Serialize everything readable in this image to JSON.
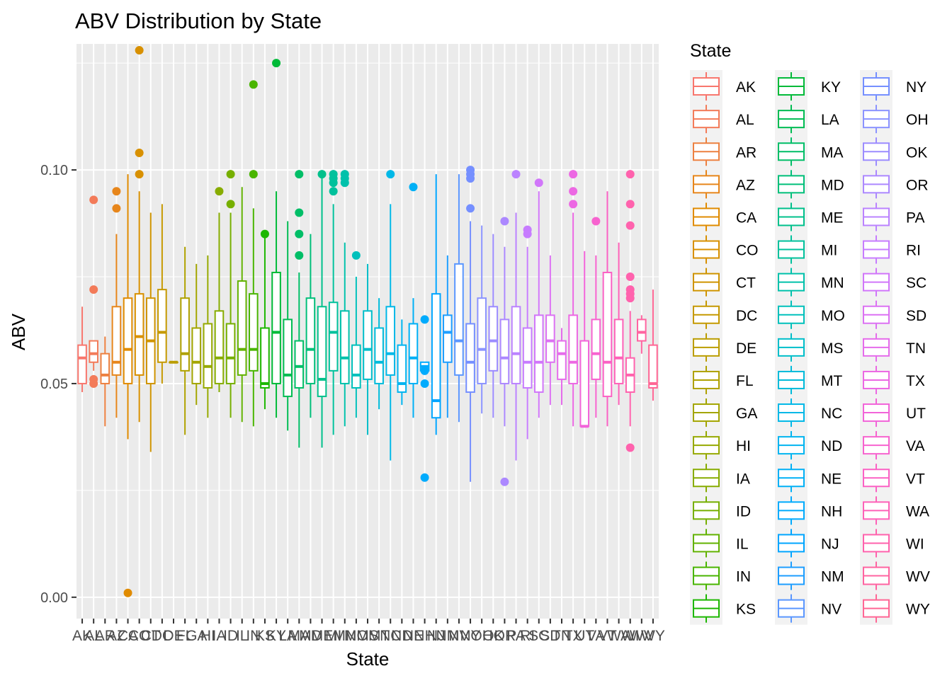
{
  "chart_data": {
    "type": "boxplot",
    "title": "ABV Distribution by State",
    "xlabel": "State",
    "ylabel": "ABV",
    "ylim": [
      -0.005,
      0.1295
    ],
    "yticks": [
      0.0,
      0.05,
      0.1
    ],
    "ytick_labels": [
      "0.00",
      "0.05",
      "0.10"
    ],
    "grid": true,
    "legend": {
      "title": "State",
      "position": "right",
      "columns": 3
    },
    "series": [
      {
        "name": "AK",
        "color": "#F8766D",
        "min": 0.048,
        "q1": 0.05,
        "median": 0.056,
        "q3": 0.059,
        "max": 0.068,
        "outliers": []
      },
      {
        "name": "AL",
        "color": "#F37B59",
        "min": 0.053,
        "q1": 0.055,
        "median": 0.057,
        "q3": 0.06,
        "max": 0.06,
        "outliers": [
          0.093,
          0.072,
          0.051,
          0.05
        ]
      },
      {
        "name": "AR",
        "color": "#ED8141",
        "min": 0.04,
        "q1": 0.05,
        "median": 0.052,
        "q3": 0.057,
        "max": 0.061,
        "outliers": []
      },
      {
        "name": "AZ",
        "color": "#E7861B",
        "min": 0.042,
        "q1": 0.052,
        "median": 0.055,
        "q3": 0.068,
        "max": 0.085,
        "outliers": [
          0.095,
          0.091
        ]
      },
      {
        "name": "CA",
        "color": "#E08B00",
        "min": 0.037,
        "q1": 0.05,
        "median": 0.058,
        "q3": 0.07,
        "max": 0.099,
        "outliers": [
          0.001
        ]
      },
      {
        "name": "CO",
        "color": "#D89000",
        "min": 0.041,
        "q1": 0.052,
        "median": 0.061,
        "q3": 0.071,
        "max": 0.095,
        "outliers": [
          0.128,
          0.104,
          0.099
        ]
      },
      {
        "name": "CT",
        "color": "#CF9400",
        "min": 0.034,
        "q1": 0.05,
        "median": 0.06,
        "q3": 0.07,
        "max": 0.09,
        "outliers": []
      },
      {
        "name": "DC",
        "color": "#C59900",
        "min": 0.05,
        "q1": 0.055,
        "median": 0.062,
        "q3": 0.072,
        "max": 0.092,
        "outliers": []
      },
      {
        "name": "DE",
        "color": "#BB9D00",
        "min": 0.055,
        "q1": 0.055,
        "median": 0.055,
        "q3": 0.055,
        "max": 0.055,
        "outliers": []
      },
      {
        "name": "FL",
        "color": "#AFA100",
        "min": 0.038,
        "q1": 0.053,
        "median": 0.057,
        "q3": 0.07,
        "max": 0.082,
        "outliers": []
      },
      {
        "name": "GA",
        "color": "#A3A500",
        "min": 0.045,
        "q1": 0.05,
        "median": 0.055,
        "q3": 0.063,
        "max": 0.078,
        "outliers": []
      },
      {
        "name": "HI",
        "color": "#96A900",
        "min": 0.042,
        "q1": 0.049,
        "median": 0.054,
        "q3": 0.064,
        "max": 0.08,
        "outliers": []
      },
      {
        "name": "IA",
        "color": "#87AC00",
        "min": 0.048,
        "q1": 0.05,
        "median": 0.056,
        "q3": 0.067,
        "max": 0.09,
        "outliers": [
          0.095
        ]
      },
      {
        "name": "ID",
        "color": "#76AF00",
        "min": 0.042,
        "q1": 0.05,
        "median": 0.056,
        "q3": 0.064,
        "max": 0.09,
        "outliers": [
          0.099,
          0.092
        ]
      },
      {
        "name": "IL",
        "color": "#62B200",
        "min": 0.041,
        "q1": 0.052,
        "median": 0.058,
        "q3": 0.074,
        "max": 0.096,
        "outliers": []
      },
      {
        "name": "IN",
        "color": "#49B500",
        "min": 0.04,
        "q1": 0.053,
        "median": 0.058,
        "q3": 0.071,
        "max": 0.091,
        "outliers": [
          0.12,
          0.099
        ]
      },
      {
        "name": "KS",
        "color": "#1DB700",
        "min": 0.044,
        "q1": 0.049,
        "median": 0.05,
        "q3": 0.063,
        "max": 0.085,
        "outliers": [
          0.085
        ]
      },
      {
        "name": "KY",
        "color": "#00BA38",
        "min": 0.042,
        "q1": 0.05,
        "median": 0.062,
        "q3": 0.076,
        "max": 0.095,
        "outliers": [
          0.125
        ]
      },
      {
        "name": "LA",
        "color": "#00BC52",
        "min": 0.039,
        "q1": 0.047,
        "median": 0.052,
        "q3": 0.065,
        "max": 0.088,
        "outliers": []
      },
      {
        "name": "MA",
        "color": "#00BE67",
        "min": 0.035,
        "q1": 0.049,
        "median": 0.054,
        "q3": 0.06,
        "max": 0.076,
        "outliers": [
          0.099,
          0.09,
          0.085,
          0.08
        ]
      },
      {
        "name": "MD",
        "color": "#00BF79",
        "min": 0.042,
        "q1": 0.05,
        "median": 0.058,
        "q3": 0.07,
        "max": 0.085,
        "outliers": []
      },
      {
        "name": "ME",
        "color": "#00C08B",
        "min": 0.035,
        "q1": 0.047,
        "median": 0.051,
        "q3": 0.068,
        "max": 0.099,
        "outliers": [
          0.099
        ]
      },
      {
        "name": "MI",
        "color": "#00C19C",
        "min": 0.038,
        "q1": 0.053,
        "median": 0.062,
        "q3": 0.069,
        "max": 0.092,
        "outliers": [
          0.099,
          0.098,
          0.097,
          0.095
        ]
      },
      {
        "name": "MN",
        "color": "#00C1AB",
        "min": 0.04,
        "q1": 0.05,
        "median": 0.056,
        "q3": 0.067,
        "max": 0.083,
        "outliers": [
          0.099,
          0.098,
          0.097
        ]
      },
      {
        "name": "MO",
        "color": "#00C0BB",
        "min": 0.042,
        "q1": 0.049,
        "median": 0.052,
        "q3": 0.059,
        "max": 0.075,
        "outliers": [
          0.08
        ]
      },
      {
        "name": "MS",
        "color": "#00BECA",
        "min": 0.038,
        "q1": 0.051,
        "median": 0.058,
        "q3": 0.067,
        "max": 0.078,
        "outliers": []
      },
      {
        "name": "MT",
        "color": "#00BBDA",
        "min": 0.044,
        "q1": 0.05,
        "median": 0.055,
        "q3": 0.063,
        "max": 0.07,
        "outliers": []
      },
      {
        "name": "NC",
        "color": "#00B8E7",
        "min": 0.032,
        "q1": 0.052,
        "median": 0.057,
        "q3": 0.068,
        "max": 0.092,
        "outliers": [
          0.099
        ]
      },
      {
        "name": "ND",
        "color": "#00B4F0",
        "min": 0.045,
        "q1": 0.048,
        "median": 0.05,
        "q3": 0.059,
        "max": 0.065,
        "outliers": []
      },
      {
        "name": "NE",
        "color": "#00B0F6",
        "min": 0.042,
        "q1": 0.05,
        "median": 0.056,
        "q3": 0.064,
        "max": 0.07,
        "outliers": [
          0.096
        ]
      },
      {
        "name": "NH",
        "color": "#00ABFD",
        "min": 0.053,
        "q1": 0.053,
        "median": 0.054,
        "q3": 0.055,
        "max": 0.055,
        "outliers": [
          0.065,
          0.053,
          0.05,
          0.028
        ]
      },
      {
        "name": "NJ",
        "color": "#00A5FF",
        "min": 0.038,
        "q1": 0.042,
        "median": 0.046,
        "q3": 0.071,
        "max": 0.099,
        "outliers": []
      },
      {
        "name": "NM",
        "color": "#1E9EFF",
        "min": 0.042,
        "q1": 0.055,
        "median": 0.062,
        "q3": 0.066,
        "max": 0.08,
        "outliers": []
      },
      {
        "name": "NV",
        "color": "#5B97FF",
        "min": 0.041,
        "q1": 0.052,
        "median": 0.06,
        "q3": 0.078,
        "max": 0.099,
        "outliers": []
      },
      {
        "name": "NY",
        "color": "#758FFF",
        "min": 0.027,
        "q1": 0.048,
        "median": 0.055,
        "q3": 0.064,
        "max": 0.088,
        "outliers": [
          0.1,
          0.099,
          0.098,
          0.091
        ]
      },
      {
        "name": "OH",
        "color": "#8B93FF",
        "min": 0.043,
        "q1": 0.05,
        "median": 0.058,
        "q3": 0.07,
        "max": 0.087,
        "outliers": []
      },
      {
        "name": "OK",
        "color": "#9C8CFF",
        "min": 0.042,
        "q1": 0.053,
        "median": 0.06,
        "q3": 0.068,
        "max": 0.085,
        "outliers": []
      },
      {
        "name": "OR",
        "color": "#AC88FF",
        "min": 0.04,
        "q1": 0.05,
        "median": 0.056,
        "q3": 0.065,
        "max": 0.082,
        "outliers": [
          0.088,
          0.027
        ]
      },
      {
        "name": "PA",
        "color": "#BB83FF",
        "min": 0.032,
        "q1": 0.05,
        "median": 0.057,
        "q3": 0.068,
        "max": 0.09,
        "outliers": [
          0.099
        ]
      },
      {
        "name": "RI",
        "color": "#C77CFF",
        "min": 0.037,
        "q1": 0.049,
        "median": 0.055,
        "q3": 0.063,
        "max": 0.082,
        "outliers": [
          0.086,
          0.085
        ]
      },
      {
        "name": "SC",
        "color": "#D176FA",
        "min": 0.042,
        "q1": 0.048,
        "median": 0.055,
        "q3": 0.066,
        "max": 0.095,
        "outliers": [
          0.097
        ]
      },
      {
        "name": "SD",
        "color": "#DC71F3",
        "min": 0.045,
        "q1": 0.055,
        "median": 0.06,
        "q3": 0.066,
        "max": 0.08,
        "outliers": []
      },
      {
        "name": "TN",
        "color": "#E56CEB",
        "min": 0.045,
        "q1": 0.051,
        "median": 0.057,
        "q3": 0.06,
        "max": 0.063,
        "outliers": []
      },
      {
        "name": "TX",
        "color": "#EC68E3",
        "min": 0.04,
        "q1": 0.05,
        "median": 0.055,
        "q3": 0.066,
        "max": 0.09,
        "outliers": [
          0.099,
          0.095,
          0.092
        ]
      },
      {
        "name": "UT",
        "color": "#F264D9",
        "min": 0.04,
        "q1": 0.04,
        "median": 0.04,
        "q3": 0.06,
        "max": 0.081,
        "outliers": []
      },
      {
        "name": "VA",
        "color": "#F763CF",
        "min": 0.042,
        "q1": 0.051,
        "median": 0.057,
        "q3": 0.065,
        "max": 0.08,
        "outliers": [
          0.088
        ]
      },
      {
        "name": "VT",
        "color": "#FB61C4",
        "min": 0.04,
        "q1": 0.047,
        "median": 0.055,
        "q3": 0.076,
        "max": 0.095,
        "outliers": []
      },
      {
        "name": "WA",
        "color": "#FE61B8",
        "min": 0.045,
        "q1": 0.05,
        "median": 0.056,
        "q3": 0.065,
        "max": 0.083,
        "outliers": []
      },
      {
        "name": "WI",
        "color": "#FF62AD",
        "min": 0.04,
        "q1": 0.048,
        "median": 0.052,
        "q3": 0.056,
        "max": 0.067,
        "outliers": [
          0.099,
          0.092,
          0.087,
          0.075,
          0.072,
          0.071,
          0.07,
          0.035
        ]
      },
      {
        "name": "WV",
        "color": "#FF64A1",
        "min": 0.057,
        "q1": 0.06,
        "median": 0.062,
        "q3": 0.065,
        "max": 0.066,
        "outliers": []
      },
      {
        "name": "WY",
        "color": "#FF6795",
        "min": 0.046,
        "q1": 0.049,
        "median": 0.05,
        "q3": 0.059,
        "max": 0.072,
        "outliers": []
      }
    ]
  }
}
